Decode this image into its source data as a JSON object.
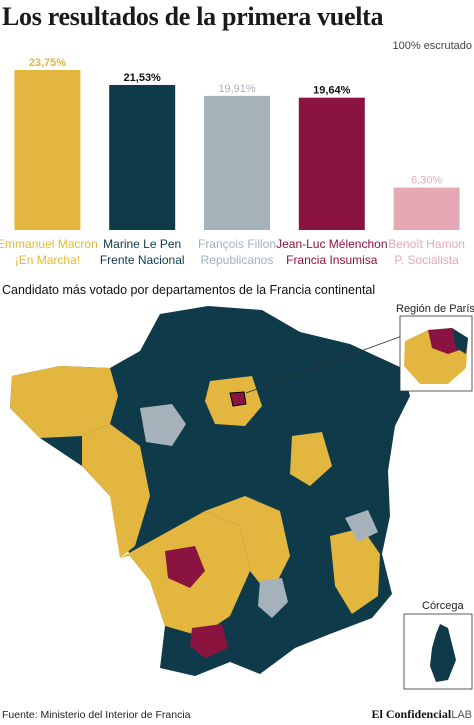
{
  "header": {
    "title": "Los resultados de la primera vuelta",
    "scrutiny": "100% escrutado"
  },
  "chart_data": {
    "type": "bar",
    "title": "Los resultados de la primera vuelta",
    "categories": [
      "Emmanuel Macron",
      "Marine Le Pen",
      "François Fillon",
      "Jean-Luc Mélenchon",
      "Benoît Hamon"
    ],
    "parties": [
      "¡En Marcha!",
      "Frente Nacional",
      "Republicanos",
      "Francia Insumisa",
      "P. Socialista"
    ],
    "values": [
      23.75,
      21.53,
      19.91,
      19.64,
      6.3
    ],
    "value_labels": [
      "23,75%",
      "21,53%",
      "19,91%",
      "19,64%",
      "6,30%"
    ],
    "colors": [
      "#e3b73f",
      "#0f3a4a",
      "#a5b2b9",
      "#8a1340",
      "#e5a9b5"
    ],
    "label_colors": [
      "#e3b73f",
      "#0f3a4a",
      "#a5b2b9",
      "#8a1340",
      "#e5a9b5"
    ],
    "ylim": [
      0,
      23.75
    ],
    "grid": false,
    "legend": "none"
  },
  "map": {
    "heading": "Candidato más votado por departamentos de la Francia continental",
    "inset_paris_label": "Región de París",
    "inset_corsica_label": "Córcega",
    "colors": {
      "macron": "#e3b73f",
      "lepen": "#0f3a4a",
      "fillon": "#a5b2b9",
      "melenchon": "#8a1340"
    }
  },
  "footer": {
    "source": "Fuente: Ministerio del Interior de Francia",
    "logo_main": "El Confidencial",
    "logo_lab": "LAB"
  }
}
